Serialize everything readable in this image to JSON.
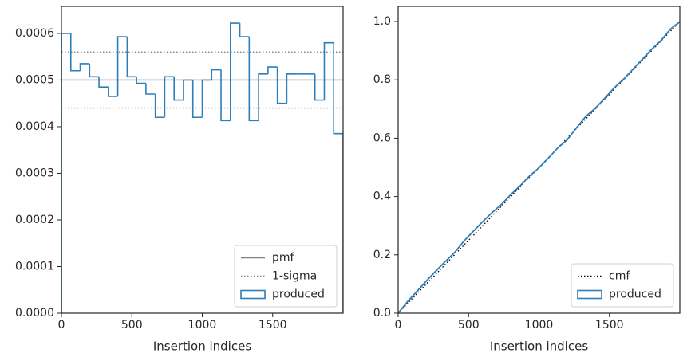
{
  "chart_data": [
    {
      "type": "histogram",
      "xlabel": "Insertion indices",
      "bins": [
        0,
        66.7,
        133.3,
        200,
        266.7,
        333.3,
        400,
        466.7,
        533.3,
        600,
        666.7,
        733.3,
        800,
        866.7,
        933.3,
        1000,
        1066.7,
        1133.3,
        1200,
        1266.7,
        1333.3,
        1400,
        1466.7,
        1533.3,
        1600,
        1666.7,
        1733.3,
        1800,
        1866.7,
        1933.3,
        2000
      ],
      "series": [
        {
          "name": "produced",
          "color": "#2e7fb8",
          "values": [
            0.0006,
            0.00052,
            0.000535,
            0.000507,
            0.000485,
            0.000465,
            0.000593,
            0.000507,
            0.000493,
            0.00047,
            0.00042,
            0.000507,
            0.000457,
            0.0005,
            0.00042,
            0.0005,
            0.000522,
            0.000413,
            0.000622,
            0.000593,
            0.000413,
            0.000513,
            0.000528,
            0.00045,
            0.000513,
            0.000513,
            0.000513,
            0.000457,
            0.00058,
            0.000385
          ]
        }
      ],
      "reference_lines": [
        {
          "name": "pmf",
          "color": "#808080",
          "style": "solid",
          "values": [
            0.0005
          ]
        },
        {
          "name": "1-sigma",
          "color": "#808080",
          "style": "dotted",
          "values": [
            0.00044,
            0.00056
          ]
        }
      ],
      "legend": "lower right",
      "xlim": [
        0,
        2000
      ],
      "ylim": [
        0,
        0.000658
      ],
      "xticks": [
        0,
        500,
        1000,
        1500
      ],
      "yticks": [
        {
          "value": 0,
          "label": "0.0000"
        },
        {
          "value": 0.0001,
          "label": "0.0001"
        },
        {
          "value": 0.0002,
          "label": "0.0002"
        },
        {
          "value": 0.0003,
          "label": "0.0003"
        },
        {
          "value": 0.0004,
          "label": "0.0004"
        },
        {
          "value": 0.0005,
          "label": "0.0005"
        },
        {
          "value": 0.0006,
          "label": "0.0006"
        }
      ]
    },
    {
      "type": "line",
      "xlabel": "Insertion indices",
      "series": [
        {
          "name": "cmf",
          "color": "#000000",
          "style": "dotted",
          "x": [
            0,
            2000
          ],
          "values": [
            0,
            1
          ]
        },
        {
          "name": "produced",
          "color": "#2e7fb8",
          "style": "solid",
          "x": [
            0,
            66.7,
            133.3,
            200,
            266.7,
            333.3,
            400,
            466.7,
            533.3,
            600,
            666.7,
            733.3,
            800,
            866.7,
            933.3,
            1000,
            1066.7,
            1133.3,
            1200,
            1266.7,
            1333.3,
            1400,
            1466.7,
            1533.3,
            1600,
            1666.7,
            1733.3,
            1800,
            1866.7,
            1933.3,
            2000
          ],
          "values": [
            0,
            0.04,
            0.0747,
            0.1104,
            0.1442,
            0.1765,
            0.2075,
            0.247,
            0.2808,
            0.3137,
            0.345,
            0.373,
            0.4068,
            0.4373,
            0.4706,
            0.4986,
            0.5319,
            0.5667,
            0.5942,
            0.6357,
            0.6752,
            0.7027,
            0.7369,
            0.7721,
            0.8021,
            0.8363,
            0.8705,
            0.9047,
            0.9352,
            0.9739,
            0.9996
          ]
        }
      ],
      "legend": "lower right",
      "xlim": [
        0,
        2000
      ],
      "ylim": [
        0,
        1.052
      ],
      "xticks": [
        0,
        500,
        1000,
        1500
      ],
      "yticks": [
        {
          "value": 0,
          "label": "0.0"
        },
        {
          "value": 0.2,
          "label": "0.2"
        },
        {
          "value": 0.4,
          "label": "0.4"
        },
        {
          "value": 0.6,
          "label": "0.6"
        },
        {
          "value": 0.8,
          "label": "0.8"
        },
        {
          "value": 1.0,
          "label": "1.0"
        }
      ]
    }
  ]
}
